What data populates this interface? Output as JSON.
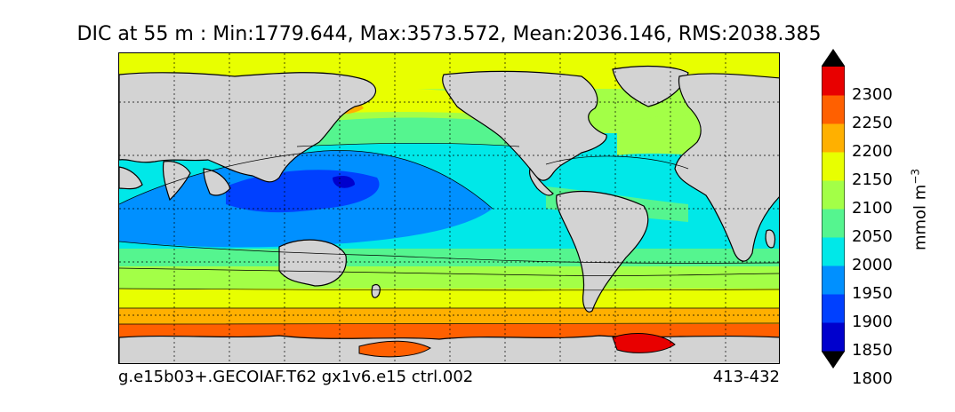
{
  "title": "DIC at 55 m : Min:1779.644, Max:3573.572, Mean:2036.146, RMS:2038.385",
  "footer": {
    "case_name": "g.e15b03+.GECOIAF.T62 gx1v6.e15 ctrl.002",
    "years": "413-432"
  },
  "colorbar": {
    "units": "mmol m",
    "units_exponent": "−3",
    "levels": [
      "2300",
      "2250",
      "2200",
      "2150",
      "2100",
      "2050",
      "2000",
      "1950",
      "1900",
      "1850",
      "1800"
    ],
    "colors": [
      "#000080",
      "#0000cd",
      "#0040ff",
      "#0090ff",
      "#00e8e8",
      "#55f58f",
      "#a3ff47",
      "#e8ff00",
      "#ffb000",
      "#ff6000",
      "#e80000",
      "#800000"
    ],
    "extend": "both"
  },
  "map": {
    "land_color": "#d3d3d3",
    "grid": true,
    "projection": "cylindrical",
    "center_longitude": 180
  }
}
